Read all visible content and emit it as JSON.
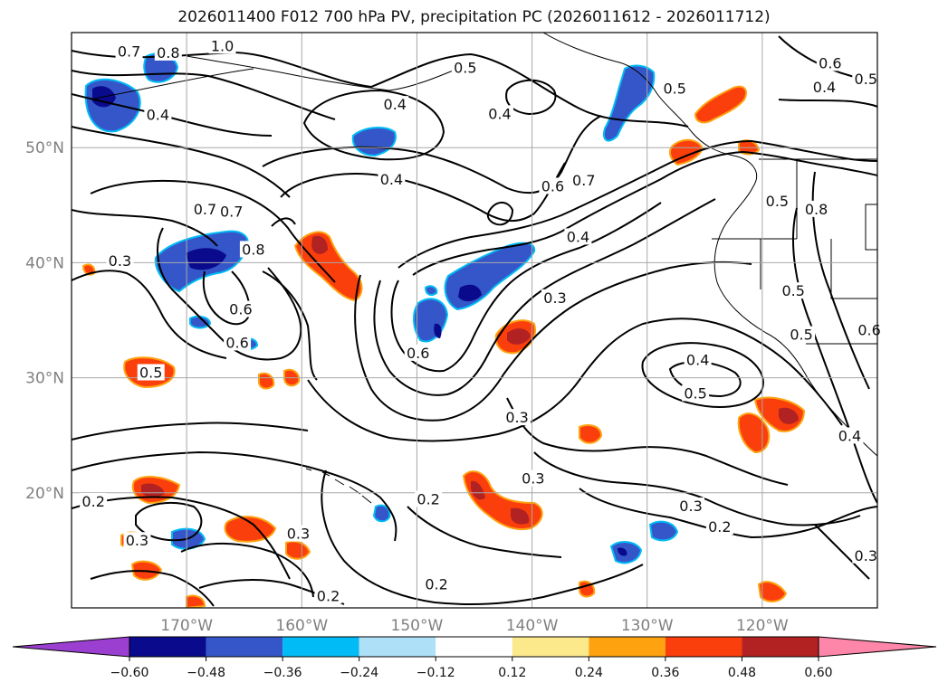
{
  "title": "2026011400 F012 700 hPa PV, precipitation PC (2026011612 - 2026011712)",
  "map": {
    "lon_range": [
      -180,
      -110
    ],
    "lat_range": [
      10,
      60
    ],
    "lat_ticks": [
      {
        "value": 50,
        "label": "50°N"
      },
      {
        "value": 40,
        "label": "40°N"
      },
      {
        "value": 30,
        "label": "30°N"
      },
      {
        "value": 20,
        "label": "20°N"
      }
    ],
    "lon_ticks": [
      {
        "value": -170,
        "label": "170°W"
      },
      {
        "value": -160,
        "label": "160°W"
      },
      {
        "value": -150,
        "label": "150°W"
      },
      {
        "value": -140,
        "label": "140°W"
      },
      {
        "value": -130,
        "label": "130°W"
      },
      {
        "value": -120,
        "label": "120°W"
      }
    ],
    "grid": true,
    "contour_labels": [
      {
        "text": "1.0",
        "lon": -166.9,
        "lat": 58.8
      },
      {
        "text": "0.7",
        "lon": -175.0,
        "lat": 58.3
      },
      {
        "text": "0.8",
        "lon": -171.6,
        "lat": 58.2
      },
      {
        "text": "0.4",
        "lon": -172.5,
        "lat": 52.8
      },
      {
        "text": "0.5",
        "lon": -145.8,
        "lat": 56.9
      },
      {
        "text": "0.4",
        "lon": -151.9,
        "lat": 53.7
      },
      {
        "text": "0.4",
        "lon": -142.8,
        "lat": 52.9
      },
      {
        "text": "0.7",
        "lon": -166.1,
        "lat": 44.4
      },
      {
        "text": "0.7",
        "lon": -168.4,
        "lat": 44.6
      },
      {
        "text": "0.4",
        "lon": -152.2,
        "lat": 47.2
      },
      {
        "text": "0.6",
        "lon": -138.2,
        "lat": 46.6
      },
      {
        "text": "0.7",
        "lon": -135.5,
        "lat": 47.1
      },
      {
        "text": "0.5",
        "lon": -127.6,
        "lat": 55.1
      },
      {
        "text": "0.6",
        "lon": -114.1,
        "lat": 57.3
      },
      {
        "text": "0.4",
        "lon": -114.6,
        "lat": 55.2
      },
      {
        "text": "0.5",
        "lon": -111.0,
        "lat": 55.9
      },
      {
        "text": "0.3",
        "lon": -175.8,
        "lat": 40.1
      },
      {
        "text": "0.8",
        "lon": -164.2,
        "lat": 41.1
      },
      {
        "text": "0.6",
        "lon": -165.3,
        "lat": 35.9
      },
      {
        "text": "0.6",
        "lon": -165.6,
        "lat": 33.0
      },
      {
        "text": "0.4",
        "lon": -136.0,
        "lat": 42.2
      },
      {
        "text": "0.3",
        "lon": -138.0,
        "lat": 36.9
      },
      {
        "text": "0.6",
        "lon": -149.9,
        "lat": 32.1
      },
      {
        "text": "0.5",
        "lon": -117.3,
        "lat": 37.5
      },
      {
        "text": "0.5",
        "lon": -173.1,
        "lat": 30.4
      },
      {
        "text": "0.4",
        "lon": -125.6,
        "lat": 31.5
      },
      {
        "text": "0.5",
        "lon": -125.8,
        "lat": 28.6
      },
      {
        "text": "0.3",
        "lon": -141.3,
        "lat": 26.5
      },
      {
        "text": "0.3",
        "lon": -139.9,
        "lat": 21.2
      },
      {
        "text": "0.2",
        "lon": -149.0,
        "lat": 19.4
      },
      {
        "text": "0.2",
        "lon": -178.1,
        "lat": 19.2
      },
      {
        "text": "0.3",
        "lon": -174.3,
        "lat": 15.8
      },
      {
        "text": "0.3",
        "lon": -160.3,
        "lat": 16.4
      },
      {
        "text": "0.3",
        "lon": -126.2,
        "lat": 18.8
      },
      {
        "text": "0.2",
        "lon": -123.7,
        "lat": 17.0
      },
      {
        "text": "0.2",
        "lon": -148.3,
        "lat": 12.0
      },
      {
        "text": "0.2",
        "lon": -157.7,
        "lat": 11.0
      },
      {
        "text": "0.4",
        "lon": -112.4,
        "lat": 24.9
      },
      {
        "text": "0.3",
        "lon": -111.0,
        "lat": 14.5
      },
      {
        "text": "0.5",
        "lon": -118.7,
        "lat": 45.3
      },
      {
        "text": "0.8",
        "lon": -115.3,
        "lat": 44.6
      },
      {
        "text": "0.5",
        "lon": -116.6,
        "lat": 33.7
      },
      {
        "text": "0.6",
        "lon": -110.7,
        "lat": 34.1
      }
    ]
  },
  "colorbar": {
    "ticks": [
      "−0.60",
      "−0.48",
      "−0.36",
      "−0.24",
      "−0.12",
      "0.12",
      "0.24",
      "0.36",
      "0.48",
      "0.60"
    ],
    "colors": [
      "#9b3fd0",
      "#0a0a8c",
      "#3556c9",
      "#00bbf5",
      "#aee0f8",
      "#ffffff",
      "#fce98c",
      "#fea20f",
      "#fb3f0c",
      "#b22222",
      "#fd86a9"
    ]
  }
}
